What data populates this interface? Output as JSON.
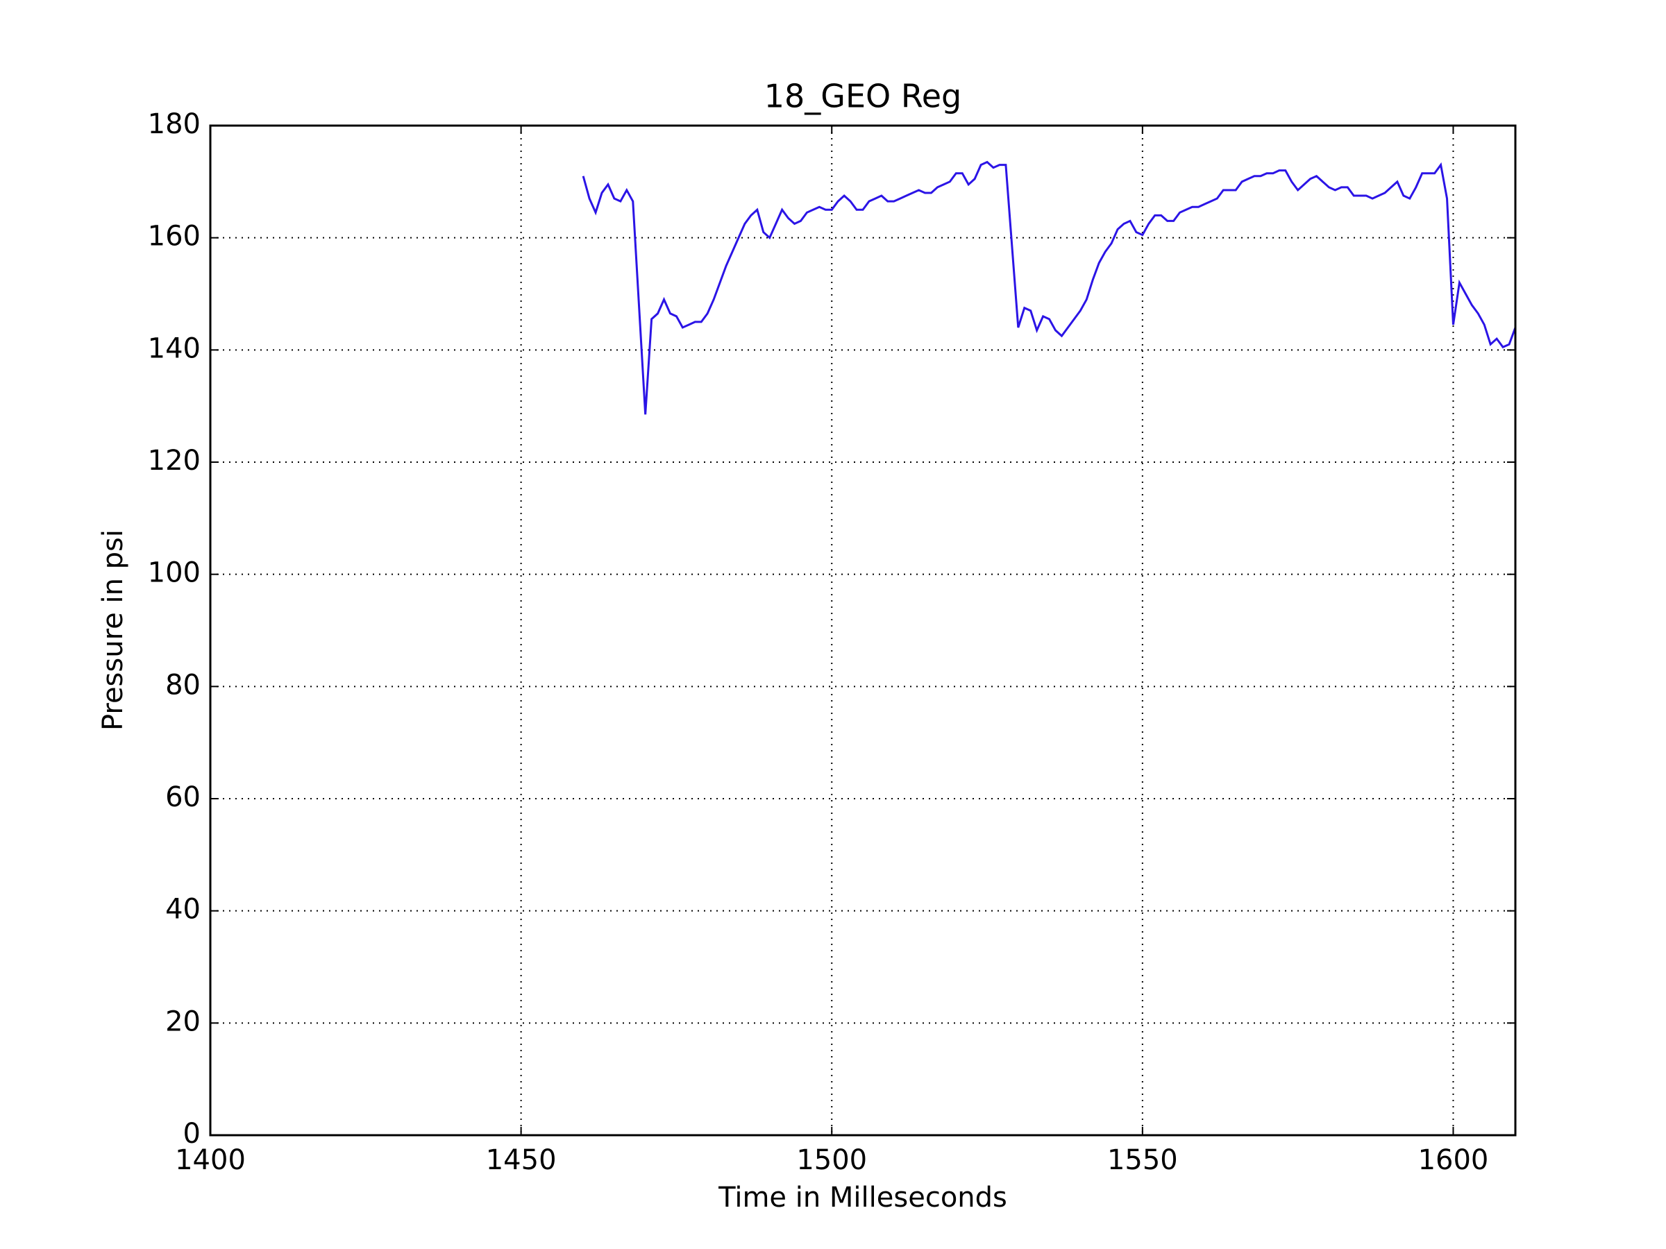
{
  "chart_data": {
    "type": "line",
    "title": "18_GEO Reg",
    "xlabel": "Time in Milleseconds",
    "ylabel": "Pressure in psi",
    "x": [
      1460,
      1461,
      1462,
      1463,
      1464,
      1465,
      1466,
      1467,
      1468,
      1470,
      1471,
      1472,
      1473,
      1474,
      1475,
      1476,
      1477,
      1478,
      1479,
      1480,
      1481,
      1482,
      1483,
      1484,
      1485,
      1486,
      1487,
      1488,
      1489,
      1490,
      1491,
      1492,
      1493,
      1494,
      1495,
      1496,
      1497,
      1498,
      1499,
      1500,
      1501,
      1502,
      1503,
      1504,
      1505,
      1506,
      1507,
      1508,
      1509,
      1510,
      1511,
      1512,
      1513,
      1514,
      1515,
      1516,
      1517,
      1518,
      1519,
      1520,
      1521,
      1522,
      1523,
      1524,
      1525,
      1526,
      1527,
      1528,
      1530,
      1531,
      1532,
      1533,
      1534,
      1535,
      1536,
      1537,
      1538,
      1539,
      1540,
      1541,
      1542,
      1543,
      1544,
      1545,
      1546,
      1547,
      1548,
      1549,
      1550,
      1551,
      1552,
      1553,
      1554,
      1555,
      1556,
      1557,
      1558,
      1559,
      1560,
      1561,
      1562,
      1563,
      1564,
      1565,
      1566,
      1567,
      1568,
      1569,
      1570,
      1571,
      1572,
      1573,
      1574,
      1575,
      1576,
      1577,
      1578,
      1579,
      1580,
      1581,
      1582,
      1583,
      1584,
      1585,
      1586,
      1587,
      1588,
      1589,
      1590,
      1591,
      1592,
      1593,
      1594,
      1595,
      1596,
      1597,
      1598,
      1599,
      1600,
      1601,
      1602,
      1603,
      1604,
      1605,
      1606,
      1607,
      1608,
      1609,
      1610
    ],
    "series": [
      {
        "name": "18_GEO Reg",
        "color": "#2b14e6",
        "values": [
          171,
          167,
          164.5,
          168,
          169.5,
          167,
          166.5,
          168.5,
          166.5,
          128.5,
          145.5,
          146.5,
          149,
          146.5,
          146,
          144,
          144.5,
          145,
          145,
          146.5,
          149,
          152,
          155,
          157.5,
          160,
          162.5,
          164,
          165,
          161,
          160,
          162.5,
          165,
          163.5,
          162.5,
          163,
          164.5,
          165,
          165.5,
          165,
          165,
          166.5,
          167.5,
          166.5,
          165,
          165,
          166.5,
          167,
          167.5,
          166.5,
          166.5,
          167,
          167.5,
          168,
          168.5,
          168,
          168,
          169,
          169.5,
          170,
          171.5,
          171.5,
          169.5,
          170.5,
          173,
          173.5,
          172.5,
          173,
          173,
          144,
          147.5,
          147,
          143.5,
          146,
          145.5,
          143.5,
          142.5,
          144,
          145.5,
          147,
          149,
          152.5,
          155.5,
          157.5,
          159,
          161.5,
          162.5,
          163,
          161,
          160.5,
          162.5,
          164,
          164,
          163,
          163,
          164.5,
          165,
          165.5,
          165.5,
          166,
          166.5,
          167,
          168.5,
          168.5,
          168.5,
          170,
          170.5,
          171,
          171,
          171.5,
          171.5,
          172,
          172,
          170,
          168.5,
          169.5,
          170.5,
          171,
          170,
          169,
          168.5,
          169,
          169,
          167.5,
          167.5,
          167.5,
          167,
          167.5,
          168,
          169,
          170,
          167.5,
          167,
          169,
          171.5,
          171.5,
          171.5,
          173,
          167,
          144.5,
          152,
          150,
          148,
          146.5,
          144.5,
          141,
          142,
          140.5,
          141,
          144
        ]
      }
    ],
    "xlim": [
      1400,
      1610
    ],
    "xticks": [
      1400,
      1450,
      1500,
      1550,
      1600
    ],
    "ylim": [
      0,
      180
    ],
    "yticks": [
      0,
      20,
      40,
      60,
      80,
      100,
      120,
      140,
      160,
      180
    ],
    "grid": true
  }
}
